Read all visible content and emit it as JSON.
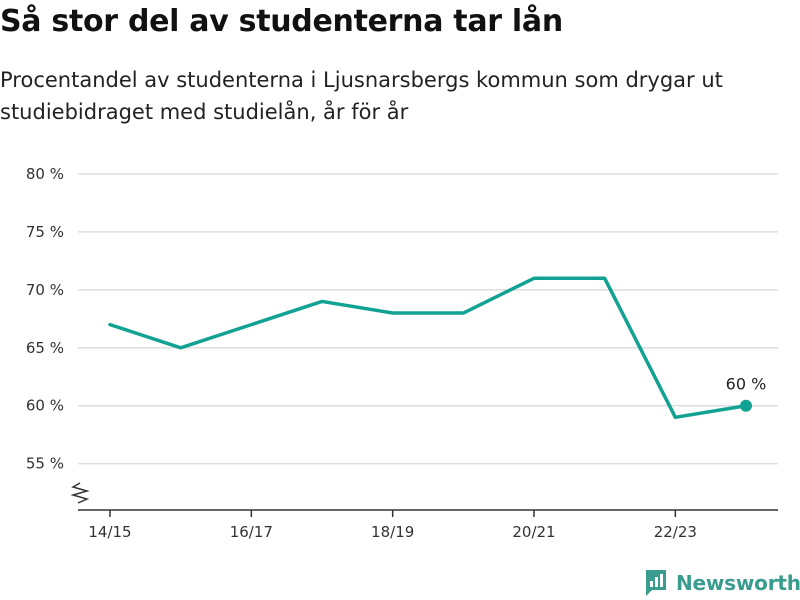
{
  "title": "Så stor del av studenterna tar lån",
  "subtitle": "Procentandel av studenterna i Ljusnarsbergs kommun som drygar ut studiebidraget med studielån, år för år",
  "brand": {
    "name": "Newsworthy",
    "icon": "newsworthy-logo-icon",
    "color": "#3a9c8f"
  },
  "colors": {
    "line": "#12a293",
    "grid": "#dddddd",
    "axis": "#333333"
  },
  "chart_data": {
    "type": "line",
    "title": "",
    "xlabel": "",
    "ylabel": "",
    "x": [
      "14/15",
      "15/16",
      "16/17",
      "17/18",
      "18/19",
      "19/20",
      "20/21",
      "21/22",
      "22/23",
      "23/24"
    ],
    "values": [
      67,
      65,
      67,
      69,
      68,
      68,
      71,
      71,
      59,
      60
    ],
    "ylim": [
      51,
      80
    ],
    "y_ticks": [
      55,
      60,
      65,
      70,
      75,
      80
    ],
    "y_tick_labels": [
      "55 %",
      "60 %",
      "65 %",
      "70 %",
      "75 %",
      "80 %"
    ],
    "x_tick_labels": [
      "14/15",
      "16/17",
      "18/19",
      "20/21",
      "22/23"
    ],
    "axis_break": true,
    "grid": true,
    "legend": "none",
    "end_label": "60 %"
  }
}
